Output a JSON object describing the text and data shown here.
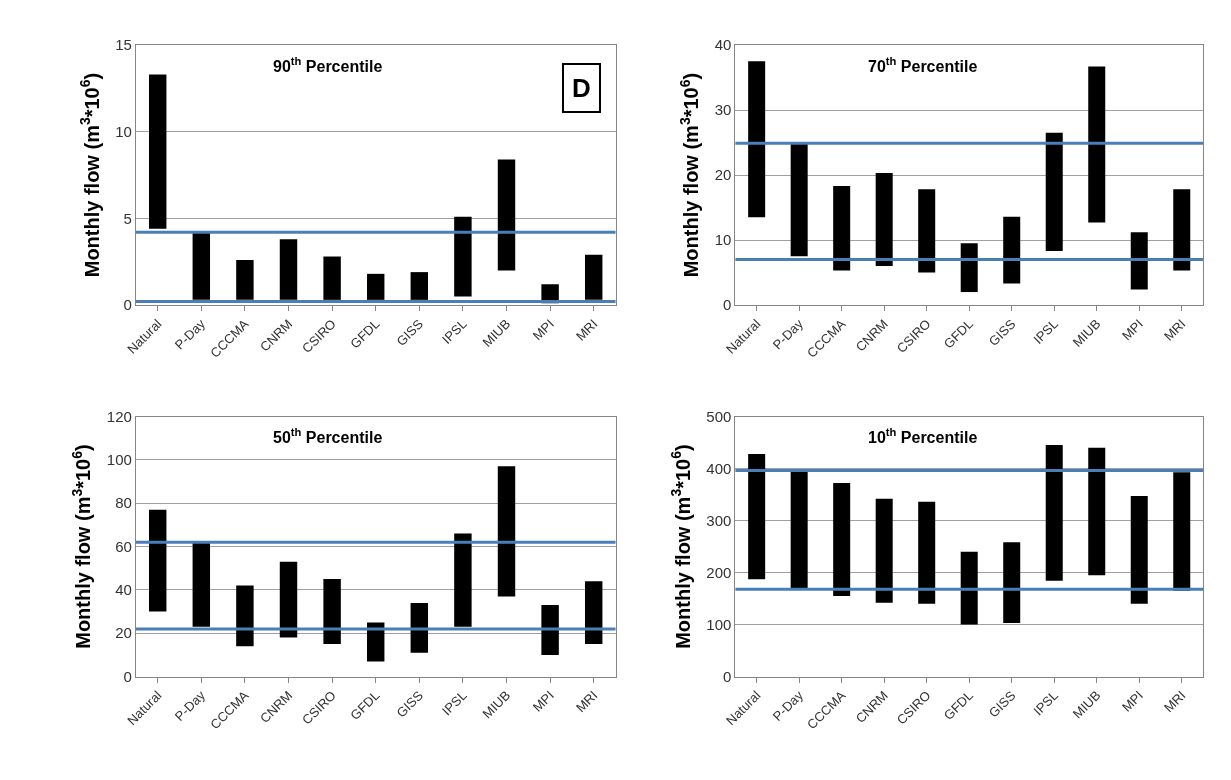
{
  "chart_data": [
    {
      "type": "bar",
      "title": "90$^{th}$ Percentile",
      "ylabel": "Monthly flow (m$^{3}$*10$^{6}$)",
      "annotations": [
        "D"
      ],
      "categories": [
        "Natural",
        "P-Day",
        "CCCMA",
        "CNRM",
        "CSIRO",
        "GFDL",
        "GISS",
        "IPSL",
        "MIUB",
        "MPI",
        "MRI"
      ],
      "base": [
        4.4,
        0.3,
        0.3,
        0.3,
        0.3,
        0.3,
        0.3,
        0.5,
        2.0,
        0.1,
        0.3
      ],
      "values": [
        8.9,
        3.9,
        2.3,
        3.5,
        2.5,
        1.5,
        1.6,
        4.6,
        6.4,
        1.1,
        2.6
      ],
      "color": "#000000",
      "ylim": [
        0,
        15
      ],
      "yticks": [
        0,
        5,
        10,
        15
      ],
      "grid": "y",
      "ref_lines": [
        {
          "axis": "y",
          "value": 4.2,
          "color": "#4a7ebb"
        },
        {
          "axis": "y",
          "value": 0.2,
          "color": "#4a7ebb"
        }
      ]
    },
    {
      "type": "bar",
      "title": "70$^{th}$ Percentile",
      "ylabel": "Monthly flow (m$^{3}$*10$^{6}$)",
      "categories": [
        "Natural",
        "P-Day",
        "CCCMA",
        "CNRM",
        "CSIRO",
        "GFDL",
        "GISS",
        "IPSL",
        "MIUB",
        "MPI",
        "MRI"
      ],
      "base": [
        13.5,
        7.5,
        5.3,
        6.0,
        5.0,
        2.0,
        3.3,
        8.3,
        12.7,
        2.4,
        5.3
      ],
      "values": [
        24.0,
        17.5,
        13.0,
        14.3,
        12.8,
        7.5,
        10.3,
        18.2,
        24.0,
        8.8,
        12.5
      ],
      "color": "#000000",
      "ylim": [
        0,
        40
      ],
      "yticks": [
        0,
        10,
        20,
        30,
        40
      ],
      "grid": "y",
      "ref_lines": [
        {
          "axis": "y",
          "value": 24.9,
          "color": "#4a7ebb"
        },
        {
          "axis": "y",
          "value": 7.0,
          "color": "#4a7ebb"
        }
      ]
    },
    {
      "type": "bar",
      "title": "50$^{th}$ Percentile",
      "ylabel": "Monthly flow (m$^{3}$*10$^{6}$)",
      "categories": [
        "Natural",
        "P-Day",
        "CCCMA",
        "CNRM",
        "CSIRO",
        "GFDL",
        "GISS",
        "IPSL",
        "MIUB",
        "MPI",
        "MRI"
      ],
      "base": [
        30,
        23,
        14,
        18,
        15,
        7,
        11,
        23,
        37,
        10,
        15
      ],
      "values": [
        47,
        39,
        28,
        35,
        30,
        18,
        23,
        43,
        60,
        23,
        29
      ],
      "color": "#000000",
      "ylim": [
        0,
        120
      ],
      "yticks": [
        0,
        20,
        40,
        60,
        80,
        100,
        120
      ],
      "grid": "y",
      "ref_lines": [
        {
          "axis": "y",
          "value": 62,
          "color": "#4a7ebb"
        },
        {
          "axis": "y",
          "value": 22,
          "color": "#4a7ebb"
        }
      ]
    },
    {
      "type": "bar",
      "title": "10$^{th}$ Percentile",
      "ylabel": "Monthly flow (m$^{3}$*10$^{6}$)",
      "categories": [
        "Natural",
        "P-Day",
        "CCCMA",
        "CNRM",
        "CSIRO",
        "GFDL",
        "GISS",
        "IPSL",
        "MIUB",
        "MPI",
        "MRI"
      ],
      "base": [
        187,
        170,
        155,
        142,
        140,
        100,
        103,
        184,
        195,
        140,
        165
      ],
      "values": [
        241,
        225,
        217,
        200,
        196,
        140,
        155,
        261,
        245,
        207,
        228
      ],
      "color": "#000000",
      "ylim": [
        0,
        500
      ],
      "yticks": [
        0,
        100,
        200,
        300,
        400,
        500
      ],
      "grid": "y",
      "ref_lines": [
        {
          "axis": "y",
          "value": 396,
          "color": "#4a7ebb"
        },
        {
          "axis": "y",
          "value": 168,
          "color": "#4a7ebb"
        }
      ]
    }
  ]
}
